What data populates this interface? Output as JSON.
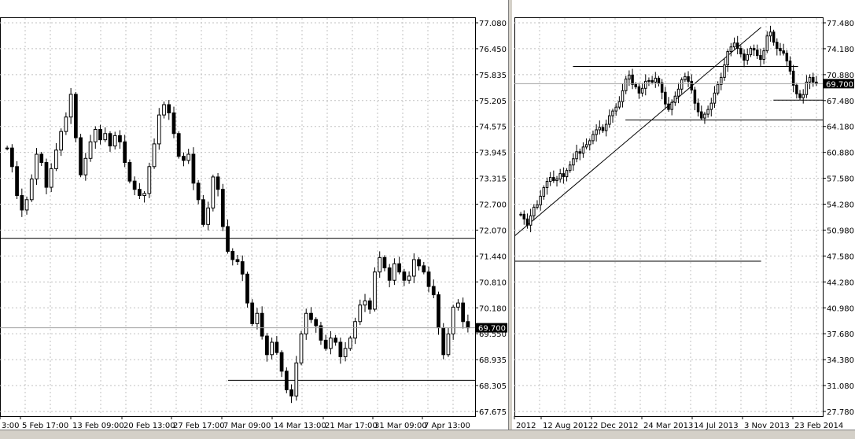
{
  "charts": {
    "left": {
      "chart_data": {
        "type": "candlestick",
        "y_ticks": [
          "77.080",
          "76.450",
          "75.835",
          "75.205",
          "74.575",
          "73.945",
          "73.315",
          "72.700",
          "72.070",
          "71.440",
          "70.810",
          "70.180",
          "69.550",
          "68.935",
          "68.305",
          "67.675"
        ],
        "x_ticks": [
          "3:00",
          "5 Feb 17:00",
          "13 Feb 09:00",
          "20 Feb 13:00",
          "27 Feb 17:00",
          "7 Mar 09:00",
          "14 Mar 13:00",
          "21 Mar 17:00",
          "31 Mar 09:00",
          "7 Apr 13:00"
        ],
        "ylim": [
          67.675,
          77.08
        ],
        "current_price": "69.700",
        "current_value": 69.7,
        "grid": true,
        "horizontal_levels": [
          {
            "value": 71.86,
            "from": 0.0,
            "to": 1.0
          },
          {
            "value": 68.43,
            "from": 0.48,
            "to": 1.0
          }
        ],
        "closes": [
          74.05,
          73.6,
          72.9,
          72.55,
          72.8,
          73.3,
          73.9,
          73.7,
          73.1,
          73.55,
          74.0,
          74.45,
          74.8,
          75.35,
          74.3,
          73.4,
          73.8,
          74.2,
          74.5,
          74.25,
          74.4,
          74.1,
          74.35,
          74.2,
          73.7,
          73.25,
          73.05,
          72.9,
          72.95,
          73.6,
          74.15,
          74.85,
          75.1,
          74.9,
          74.4,
          73.85,
          73.75,
          73.9,
          73.2,
          72.8,
          72.2,
          72.6,
          73.35,
          73.05,
          72.15,
          71.55,
          71.35,
          71.3,
          71.0,
          70.3,
          69.8,
          70.05,
          69.5,
          69.05,
          69.35,
          69.1,
          68.65,
          68.2,
          68.05,
          68.85,
          69.55,
          70.05,
          69.9,
          69.75,
          69.4,
          69.2,
          69.45,
          69.35,
          69.0,
          69.2,
          69.45,
          69.85,
          70.25,
          70.35,
          70.15,
          71.05,
          71.4,
          71.15,
          70.85,
          71.25,
          71.05,
          70.85,
          70.95,
          71.35,
          71.2,
          71.05,
          70.7,
          70.5,
          69.7,
          69.05,
          69.55,
          70.2,
          70.3,
          69.85,
          69.7
        ],
        "series_color": "#000000",
        "grid_color": "#c0c0c0"
      }
    },
    "right": {
      "chart_data": {
        "type": "candlestick",
        "y_ticks": [
          "77.480",
          "74.180",
          "70.880",
          "67.480",
          "64.180",
          "60.880",
          "57.580",
          "54.280",
          "50.980",
          "47.580",
          "44.280",
          "40.980",
          "37.680",
          "34.380",
          "31.080",
          "27.780"
        ],
        "x_ticks": [
          "2012",
          "12 Aug 2012",
          "2 Dec 2012",
          "24 Mar 2013",
          "14 Jul 2013",
          "3 Nov 2013",
          "23 Feb 2014"
        ],
        "ylim": [
          27.78,
          77.48
        ],
        "current_price": "69.700",
        "current_value": 69.7,
        "grid": true,
        "horizontal_levels": [
          {
            "value": 71.9,
            "from": 0.19,
            "to": 0.92
          },
          {
            "value": 65.05,
            "from": 0.36,
            "to": 1.0
          },
          {
            "value": 67.6,
            "from": 0.84,
            "to": 1.0
          },
          {
            "value": 47.0,
            "from": 0.0,
            "to": 0.8
          }
        ],
        "trendline": [
          {
            "x": 0.0,
            "value": 50.2
          },
          {
            "x": 0.8,
            "value": 76.9
          }
        ],
        "closes": [
          53.0,
          52.4,
          51.6,
          52.8,
          53.9,
          54.2,
          55.3,
          56.4,
          57.2,
          57.7,
          57.3,
          57.5,
          58.2,
          57.8,
          58.6,
          59.3,
          60.1,
          61.0,
          60.8,
          61.6,
          61.9,
          62.4,
          63.2,
          63.8,
          64.1,
          63.7,
          64.5,
          65.6,
          66.2,
          66.7,
          67.4,
          68.8,
          70.3,
          70.8,
          69.6,
          69.3,
          68.5,
          69.1,
          70.0,
          70.1,
          69.9,
          70.4,
          69.8,
          68.6,
          67.1,
          66.4,
          67.3,
          68.1,
          69.0,
          70.2,
          70.6,
          70.0,
          68.9,
          67.2,
          66.1,
          65.3,
          65.8,
          66.4,
          67.2,
          68.5,
          69.6,
          70.5,
          72.1,
          73.8,
          74.4,
          74.9,
          74.2,
          73.5,
          72.7,
          73.4,
          74.2,
          74.0,
          73.3,
          72.8,
          73.9,
          75.8,
          76.3,
          75.0,
          74.2,
          73.9,
          73.6,
          72.6,
          71.3,
          69.5,
          68.4,
          67.9,
          68.3,
          69.9,
          70.5,
          69.9,
          69.7
        ],
        "series_color": "#000000",
        "grid_color": "#c0c0c0"
      }
    }
  }
}
